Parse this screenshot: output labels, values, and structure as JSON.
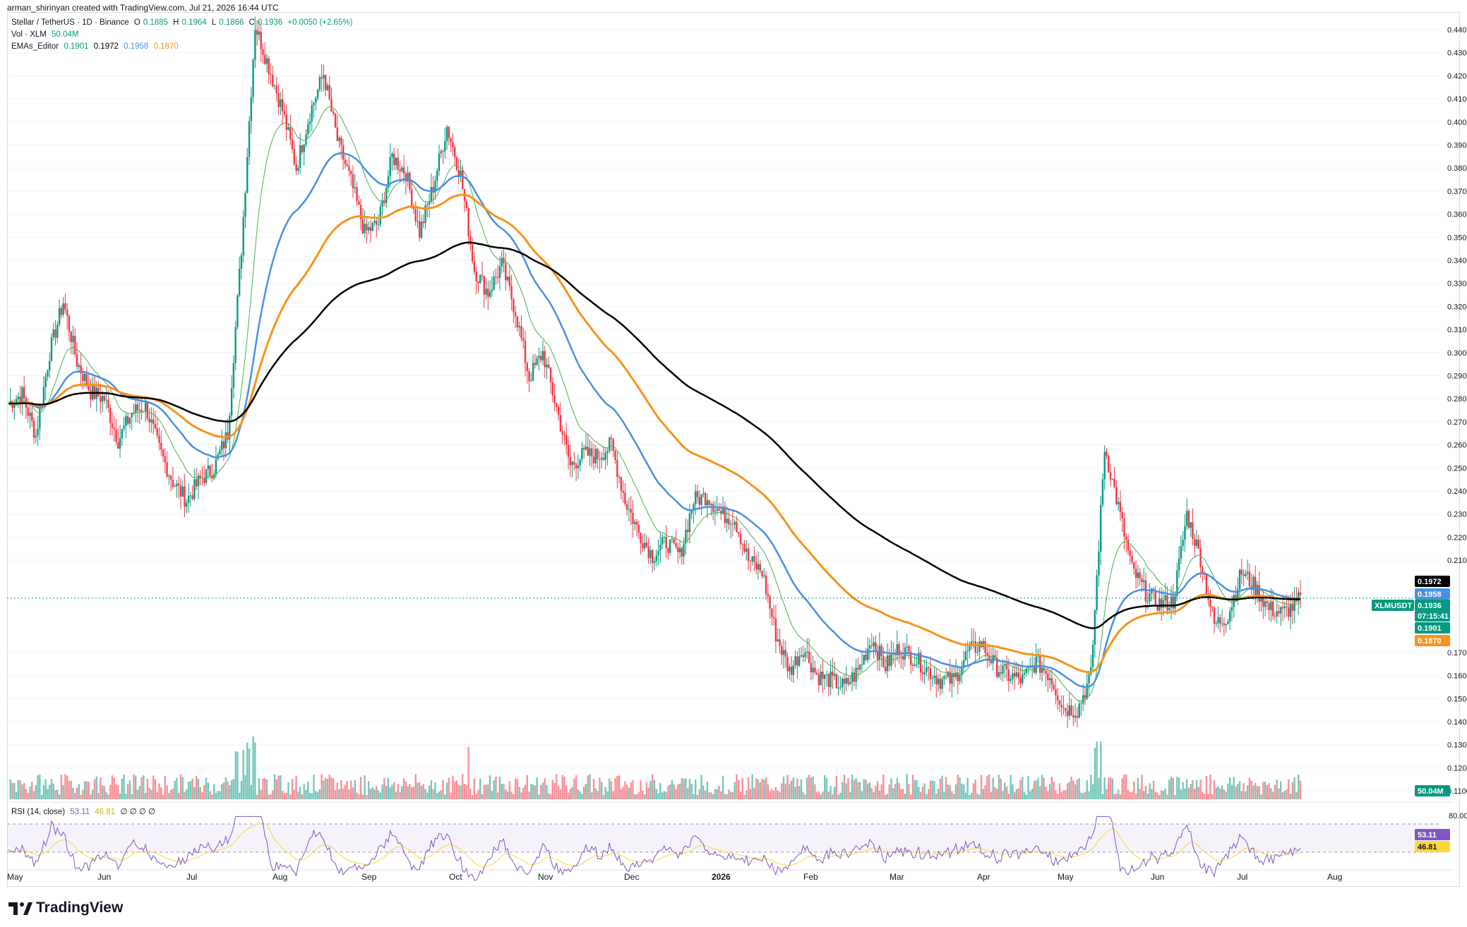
{
  "header": {
    "created": "arman_shirinyan created with TradingView.com, Jul 21, 2026 16:44 UTC"
  },
  "legend": {
    "symbol": "Stellar / TetherUS · 1D · Binance",
    "ohlc": {
      "o_label": "O",
      "o": "0.1885",
      "h_label": "H",
      "h": "0.1964",
      "l_label": "L",
      "l": "0.1866",
      "c_label": "C",
      "c": "0.1936",
      "change": "+0.0050 (+2.65%)"
    },
    "volume": {
      "label": "Vol · XLM",
      "value": "50.04M"
    },
    "emas": {
      "label": "EMAs_Editor",
      "v1": "0.1901",
      "v2": "0.1972",
      "v3": "0.1958",
      "v4": "0.1870"
    }
  },
  "rsi": {
    "label": "RSI (14, close)",
    "value": "53.11",
    "ma": "46.81",
    "ticks": [
      "80.00"
    ],
    "extra": "∅ ∅ ∅ ∅"
  },
  "price_badges": [
    {
      "text": "0.1972",
      "color": "#000000"
    },
    {
      "text": "0.1958",
      "color": "#4a90e2"
    },
    {
      "text": "XLMUSDT",
      "color": "#089981"
    },
    {
      "text": "0.1936",
      "color": "#089981"
    },
    {
      "text": "07:15:41",
      "color": "#089981"
    },
    {
      "text": "0.1901",
      "color": "#089981"
    },
    {
      "text": "0.1870",
      "color": "#f7931a"
    },
    {
      "text": "50.04M",
      "color": "#089981"
    },
    {
      "text": "53.11",
      "color": "#7e57c2"
    },
    {
      "text": "46.81",
      "color": "#fdd835"
    }
  ],
  "colors": {
    "up": "#089981",
    "down": "#f23645",
    "ema_black": "#000000",
    "ema_blue": "#4a90e2",
    "ema_orange": "#f7931a",
    "ema_green": "#4caf50",
    "rsi_line": "#7e57c2",
    "rsi_ma": "#fdd835"
  },
  "branding": {
    "logo_text": "TradingView"
  },
  "chart_data": {
    "type": "candlestick",
    "symbol": "XLMUSDT",
    "y_axis": {
      "ticks": [
        "0.4400",
        "0.4300",
        "0.4200",
        "0.4100",
        "0.4000",
        "0.3900",
        "0.3800",
        "0.3700",
        "0.3600",
        "0.3500",
        "0.3400",
        "0.3300",
        "0.3200",
        "0.3100",
        "0.3000",
        "0.2900",
        "0.2800",
        "0.2700",
        "0.2600",
        "0.2500",
        "0.2400",
        "0.2300",
        "0.2200",
        "0.2100",
        "0.1700",
        "0.1600",
        "0.1500",
        "0.1400",
        "0.1300",
        "0.1200",
        "0.1100"
      ],
      "range": [
        0.11,
        0.45
      ]
    },
    "x_axis": {
      "labels": [
        "May",
        "Jun",
        "Jul",
        "Aug",
        "Sep",
        "Oct",
        "Nov",
        "Dec",
        "2026",
        "Feb",
        "Mar",
        "Apr",
        "May",
        "Jun",
        "Jul",
        "Aug"
      ]
    },
    "close_path": [
      [
        0,
        0.278
      ],
      [
        7,
        0.282
      ],
      [
        14,
        0.264
      ],
      [
        21,
        0.3
      ],
      [
        28,
        0.322
      ],
      [
        35,
        0.296
      ],
      [
        42,
        0.283
      ],
      [
        49,
        0.28
      ],
      [
        56,
        0.262
      ],
      [
        63,
        0.274
      ],
      [
        70,
        0.277
      ],
      [
        77,
        0.258
      ],
      [
        84,
        0.244
      ],
      [
        91,
        0.236
      ],
      [
        98,
        0.245
      ],
      [
        105,
        0.25
      ],
      [
        112,
        0.265
      ],
      [
        119,
        0.345
      ],
      [
        126,
        0.442
      ],
      [
        133,
        0.424
      ],
      [
        140,
        0.405
      ],
      [
        147,
        0.38
      ],
      [
        154,
        0.404
      ],
      [
        161,
        0.421
      ],
      [
        168,
        0.392
      ],
      [
        175,
        0.374
      ],
      [
        182,
        0.352
      ],
      [
        189,
        0.356
      ],
      [
        196,
        0.385
      ],
      [
        203,
        0.378
      ],
      [
        210,
        0.352
      ],
      [
        217,
        0.372
      ],
      [
        224,
        0.398
      ],
      [
        231,
        0.377
      ],
      [
        238,
        0.336
      ],
      [
        245,
        0.326
      ],
      [
        252,
        0.338
      ],
      [
        259,
        0.318
      ],
      [
        266,
        0.289
      ],
      [
        273,
        0.3
      ],
      [
        280,
        0.276
      ],
      [
        287,
        0.251
      ],
      [
        294,
        0.256
      ],
      [
        301,
        0.255
      ],
      [
        308,
        0.26
      ],
      [
        315,
        0.236
      ],
      [
        322,
        0.222
      ],
      [
        329,
        0.212
      ],
      [
        336,
        0.218
      ],
      [
        343,
        0.212
      ],
      [
        350,
        0.236
      ],
      [
        357,
        0.238
      ],
      [
        364,
        0.23
      ],
      [
        371,
        0.228
      ],
      [
        378,
        0.21
      ],
      [
        385,
        0.205
      ],
      [
        392,
        0.178
      ],
      [
        399,
        0.162
      ],
      [
        406,
        0.172
      ],
      [
        413,
        0.16
      ],
      [
        420,
        0.158
      ],
      [
        427,
        0.155
      ],
      [
        434,
        0.162
      ],
      [
        441,
        0.176
      ],
      [
        448,
        0.164
      ],
      [
        455,
        0.172
      ],
      [
        462,
        0.168
      ],
      [
        469,
        0.163
      ],
      [
        476,
        0.158
      ],
      [
        483,
        0.158
      ],
      [
        490,
        0.17
      ],
      [
        497,
        0.174
      ],
      [
        504,
        0.164
      ],
      [
        511,
        0.16
      ],
      [
        518,
        0.158
      ],
      [
        525,
        0.166
      ],
      [
        532,
        0.16
      ],
      [
        539,
        0.146
      ],
      [
        546,
        0.145
      ],
      [
        553,
        0.16
      ],
      [
        560,
        0.259
      ],
      [
        567,
        0.233
      ],
      [
        574,
        0.206
      ],
      [
        581,
        0.196
      ],
      [
        588,
        0.191
      ],
      [
        595,
        0.192
      ],
      [
        602,
        0.23
      ],
      [
        609,
        0.211
      ],
      [
        616,
        0.182
      ],
      [
        623,
        0.186
      ],
      [
        630,
        0.205
      ],
      [
        637,
        0.198
      ],
      [
        644,
        0.189
      ],
      [
        651,
        0.187
      ],
      [
        658,
        0.191
      ],
      [
        660,
        0.1936
      ]
    ],
    "volume_latest": "50.04M",
    "ema_latest": {
      "ema_fast": 0.1901,
      "ema_slow_black": 0.1972,
      "ema_blue": 0.1958,
      "ema_orange": 0.187
    },
    "rsi_latest": 53.11,
    "rsi_ma_latest": 46.81
  }
}
